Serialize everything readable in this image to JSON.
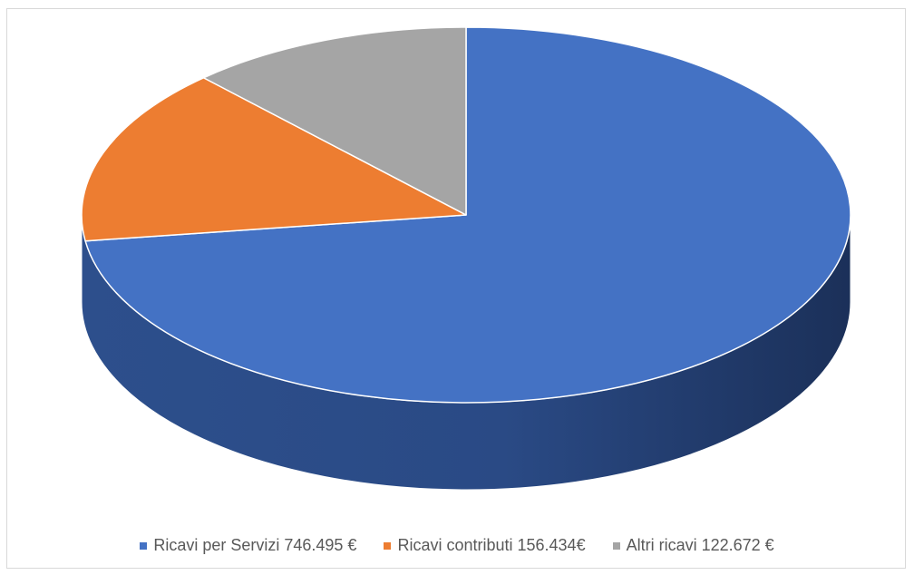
{
  "chart_data": {
    "type": "pie",
    "style": "3d",
    "title": "",
    "legend_position": "bottom",
    "slices": [
      {
        "label": "Ricavi per Servizi  746.495 €",
        "value": 746495,
        "color": "#4472c4"
      },
      {
        "label": "Ricavi contributi  156.434€",
        "value": 156434,
        "color": "#ed7d31"
      },
      {
        "label": "Altri ricavi  122.672 €",
        "value": 122672,
        "color": "#a5a5a5"
      }
    ]
  }
}
